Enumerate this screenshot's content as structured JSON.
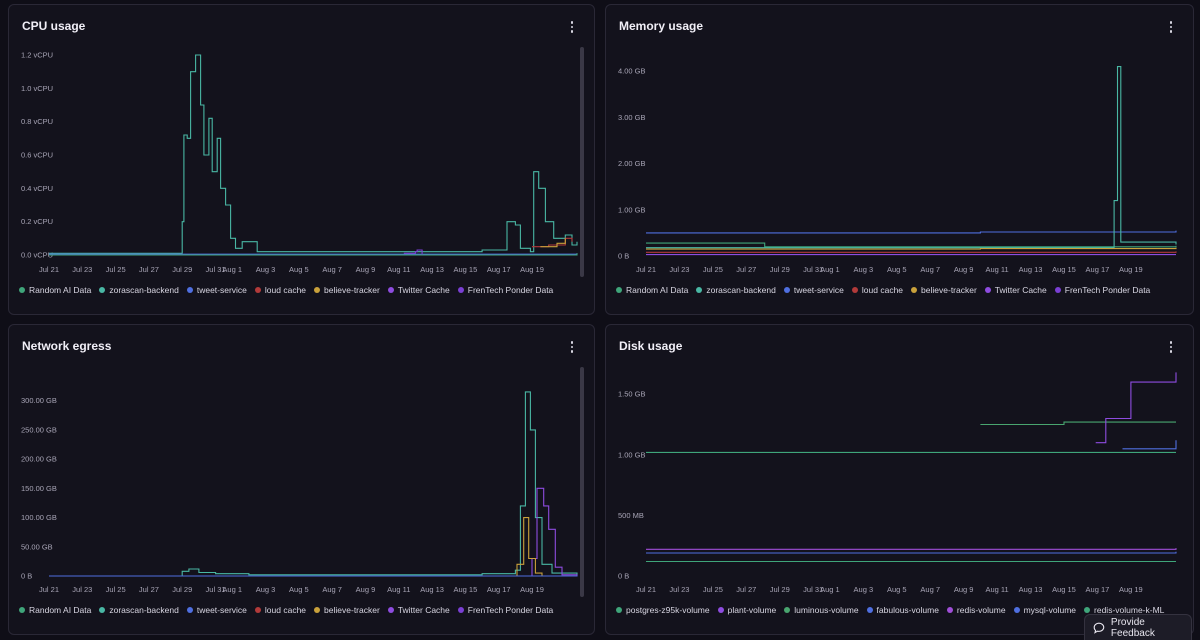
{
  "colors": {
    "Random AI Data": "#3fa57a",
    "zorascan-backend": "#49b7a4",
    "tweet-service": "#4f6fe0",
    "loud cache": "#b23a3a",
    "believe-tracker": "#c9a13b",
    "Twitter Cache": "#8e4ce0",
    "FrenTech Ponder Data": "#7a3fd4",
    "postgres-z95k-volume": "#3fa57a",
    "plant-volume": "#8e4ce0",
    "luminous-volume": "#49a56f",
    "fabulous-volume": "#4f6fe0",
    "redis-volume": "#a04ed8",
    "mysql-volume": "#4f6fe0",
    "redis-volume-k-ML": "#3fa57a"
  },
  "x_ticks": [
    "Jul 21",
    "Jul 23",
    "Jul 25",
    "Jul 27",
    "Jul 29",
    "Jul 31",
    "Aug 1",
    "Aug 3",
    "Aug 5",
    "Aug 7",
    "Aug 9",
    "Aug 11",
    "Aug 13",
    "Aug 15",
    "Aug 17",
    "Aug 19"
  ],
  "feedback": {
    "label": "Provide Feedback",
    "icon": "speech-bubble-icon"
  },
  "panels": {
    "cpu": {
      "title": "CPU usage",
      "legend": [
        "Random AI Data",
        "zorascan-backend",
        "tweet-service",
        "loud cache",
        "believe-tracker",
        "Twitter Cache",
        "FrenTech Ponder Data"
      ],
      "chart_data": {
        "type": "line",
        "y_ticks": [
          "1.2 vCPU",
          "1.0 vCPU",
          "0.8 vCPU",
          "0.6 vCPU",
          "0.4 vCPU",
          "0.2 vCPU",
          "0.0 vCPU"
        ],
        "y_values": [
          1.2,
          1.0,
          0.8,
          0.6,
          0.4,
          0.2,
          0.0
        ],
        "ylim": [
          0,
          1.2
        ],
        "series": [
          {
            "name": "zorascan-backend",
            "points": [
              [
                0,
                0.01
              ],
              [
                7.9,
                0.01
              ],
              [
                8.0,
                0.2
              ],
              [
                8.1,
                0.72
              ],
              [
                8.3,
                0.7
              ],
              [
                8.5,
                1.1
              ],
              [
                8.8,
                1.2
              ],
              [
                9.1,
                0.9
              ],
              [
                9.3,
                0.6
              ],
              [
                9.6,
                0.82
              ],
              [
                9.8,
                0.5
              ],
              [
                10.1,
                0.7
              ],
              [
                10.3,
                0.4
              ],
              [
                10.6,
                0.3
              ],
              [
                10.9,
                0.1
              ],
              [
                11.2,
                0.04
              ],
              [
                11.6,
                0.08
              ],
              [
                12.4,
                0.08
              ],
              [
                12.5,
                0.02
              ],
              [
                19.5,
                0.02
              ],
              [
                26.0,
                0.03
              ],
              [
                27.4,
                0.03
              ],
              [
                27.5,
                0.2
              ],
              [
                28.0,
                0.18
              ],
              [
                28.3,
                0.04
              ],
              [
                28.9,
                0.02
              ],
              [
                29.1,
                0.5
              ],
              [
                29.4,
                0.4
              ],
              [
                29.8,
                0.2
              ],
              [
                30.3,
                0.1
              ],
              [
                31.0,
                0.12
              ],
              [
                31.4,
                0.06
              ],
              [
                31.7,
                0.08
              ]
            ]
          },
          {
            "name": "tweet-service",
            "points": [
              [
                0,
                0.005
              ],
              [
                31.7,
                0.01
              ]
            ]
          },
          {
            "name": "FrenTech Ponder Data",
            "points": [
              [
                21.3,
                0.01
              ],
              [
                22.0,
                0.02
              ],
              [
                22.1,
                0.03
              ],
              [
                22.4,
                0.0
              ]
            ]
          },
          {
            "name": "loud cache",
            "points": [
              [
                29.0,
                0.05
              ],
              [
                30.0,
                0.06
              ],
              [
                31.0,
                0.1
              ],
              [
                31.4,
                0.08
              ]
            ]
          },
          {
            "name": "believe-tracker",
            "points": [
              [
                29.5,
                0.05
              ],
              [
                30.5,
                0.07
              ],
              [
                31.0,
                0.1
              ]
            ]
          },
          {
            "name": "Random AI Data",
            "points": [
              [
                0,
                0.0
              ],
              [
                31.7,
                0.01
              ]
            ]
          }
        ]
      }
    },
    "memory": {
      "title": "Memory usage",
      "legend": [
        "Random AI Data",
        "zorascan-backend",
        "tweet-service",
        "loud cache",
        "believe-tracker",
        "Twitter Cache",
        "FrenTech Ponder Data"
      ],
      "chart_data": {
        "type": "line",
        "y_ticks": [
          "4.00 GB",
          "3.00 GB",
          "2.00 GB",
          "1.00 GB",
          "0 B"
        ],
        "y_values": [
          4,
          3,
          2,
          1,
          0
        ],
        "ylim": [
          0,
          4.2
        ],
        "series": [
          {
            "name": "tweet-service",
            "points": [
              [
                0,
                0.5
              ],
              [
                10,
                0.5
              ],
              [
                20,
                0.52
              ],
              [
                31.7,
                0.55
              ]
            ]
          },
          {
            "name": "Random AI Data",
            "points": [
              [
                0,
                0.28
              ],
              [
                7,
                0.28
              ],
              [
                7.1,
                0.2
              ],
              [
                31.7,
                0.22
              ]
            ]
          },
          {
            "name": "zorascan-backend",
            "points": [
              [
                0,
                0.18
              ],
              [
                27.8,
                0.18
              ],
              [
                28.0,
                1.2
              ],
              [
                28.2,
                4.1
              ],
              [
                28.4,
                0.3
              ],
              [
                31.7,
                0.25
              ]
            ]
          },
          {
            "name": "believe-tracker",
            "points": [
              [
                0,
                0.15
              ],
              [
                20,
                0.16
              ],
              [
                31.7,
                0.18
              ]
            ]
          },
          {
            "name": "loud cache",
            "points": [
              [
                0,
                0.08
              ],
              [
                31.7,
                0.1
              ]
            ]
          },
          {
            "name": "Twitter Cache",
            "points": [
              [
                0,
                0.03
              ],
              [
                31.7,
                0.03
              ]
            ]
          }
        ]
      }
    },
    "network": {
      "title": "Network egress",
      "legend": [
        "Random AI Data",
        "zorascan-backend",
        "tweet-service",
        "loud cache",
        "believe-tracker",
        "Twitter Cache",
        "FrenTech Ponder Data"
      ],
      "chart_data": {
        "type": "line",
        "y_ticks": [
          "300.00 GB",
          "250.00 GB",
          "200.00 GB",
          "150.00 GB",
          "100.00 GB",
          "50.00 GB",
          "0 B"
        ],
        "y_values": [
          300,
          250,
          200,
          150,
          100,
          50,
          0
        ],
        "ylim": [
          0,
          320
        ],
        "series": [
          {
            "name": "zorascan-backend",
            "points": [
              [
                0,
                0
              ],
              [
                7.8,
                0
              ],
              [
                8.0,
                8
              ],
              [
                8.4,
                12
              ],
              [
                9,
                6
              ],
              [
                10,
                4
              ],
              [
                12,
                2
              ],
              [
                20,
                2
              ],
              [
                26,
                4
              ],
              [
                28,
                10
              ],
              [
                28.3,
                120
              ],
              [
                28.6,
                315
              ],
              [
                28.9,
                250
              ],
              [
                29.2,
                100
              ],
              [
                29.6,
                20
              ],
              [
                30.2,
                5
              ],
              [
                31.7,
                2
              ]
            ]
          },
          {
            "name": "Twitter Cache",
            "points": [
              [
                0,
                0
              ],
              [
                28.8,
                0
              ],
              [
                29.0,
                30
              ],
              [
                29.3,
                150
              ],
              [
                29.7,
                120
              ],
              [
                30.0,
                80
              ],
              [
                30.4,
                15
              ],
              [
                30.8,
                2
              ],
              [
                31.7,
                0
              ]
            ]
          },
          {
            "name": "believe-tracker",
            "points": [
              [
                27.8,
                0
              ],
              [
                28.1,
                20
              ],
              [
                28.5,
                100
              ],
              [
                28.8,
                30
              ],
              [
                29.2,
                5
              ],
              [
                29.6,
                0
              ]
            ]
          },
          {
            "name": "tweet-service",
            "points": [
              [
                0,
                0
              ],
              [
                31.7,
                1
              ]
            ]
          }
        ]
      }
    },
    "disk": {
      "title": "Disk usage",
      "legend": [
        "postgres-z95k-volume",
        "plant-volume",
        "luminous-volume",
        "fabulous-volume",
        "redis-volume",
        "mysql-volume",
        "redis-volume-k-ML"
      ],
      "chart_data": {
        "type": "line",
        "y_ticks": [
          "1.50 GB",
          "1.00 GB",
          "500 MB",
          "0 B"
        ],
        "y_values": [
          1.5,
          1.0,
          0.5,
          0
        ],
        "ylim": [
          0,
          1.7
        ],
        "series": [
          {
            "name": "postgres-z95k-volume",
            "points": [
              [
                0,
                1.02
              ],
              [
                31.7,
                1.02
              ]
            ]
          },
          {
            "name": "luminous-volume",
            "points": [
              [
                20.0,
                1.25
              ],
              [
                25.0,
                1.27
              ],
              [
                31.7,
                1.27
              ]
            ]
          },
          {
            "name": "plant-volume",
            "points": [
              [
                26.9,
                1.1
              ],
              [
                27.5,
                1.3
              ],
              [
                29.0,
                1.6
              ],
              [
                31.7,
                1.68
              ]
            ]
          },
          {
            "name": "fabulous-volume",
            "points": [
              [
                28.5,
                1.05
              ],
              [
                31.7,
                1.12
              ]
            ]
          },
          {
            "name": "redis-volume",
            "points": [
              [
                0,
                0.22
              ],
              [
                31.7,
                0.23
              ]
            ]
          },
          {
            "name": "mysql-volume",
            "points": [
              [
                0,
                0.19
              ],
              [
                31.7,
                0.2
              ]
            ]
          },
          {
            "name": "redis-volume-k-ML",
            "points": [
              [
                0,
                0.12
              ],
              [
                31.7,
                0.12
              ]
            ]
          }
        ]
      }
    }
  }
}
